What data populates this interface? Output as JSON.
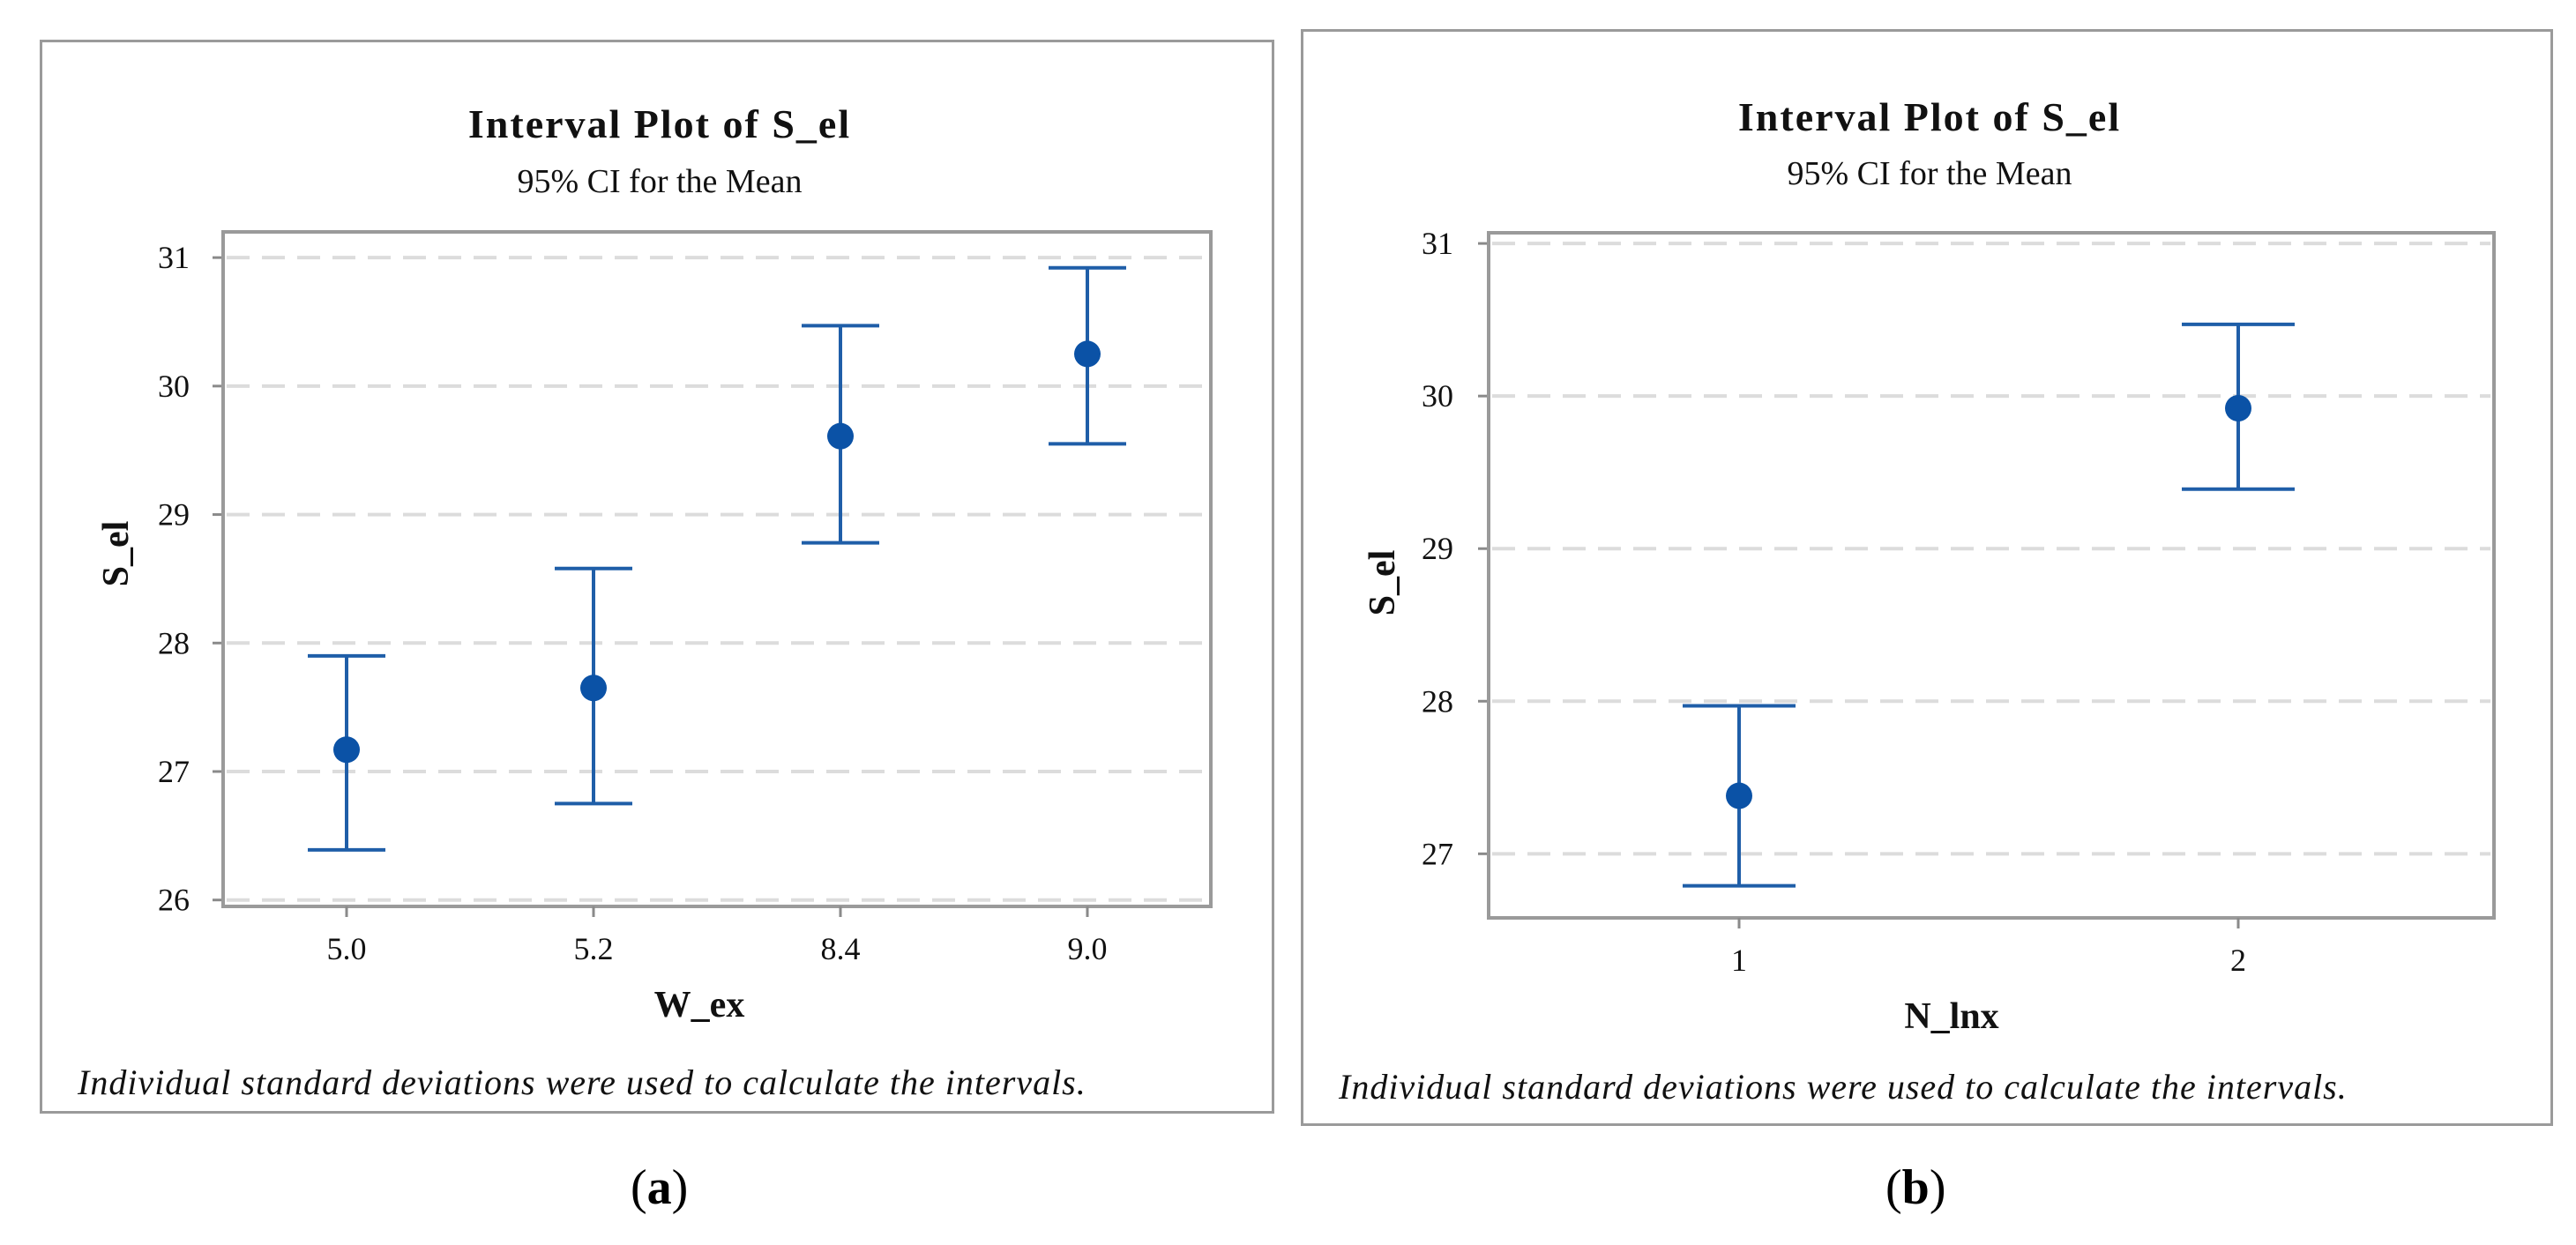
{
  "colors": {
    "series": "#1f5ea8",
    "point": "#0b52a6",
    "grid": "#dcdcdc",
    "frame": "#9a9a9a"
  },
  "chart_data": [
    {
      "type": "scatter",
      "subtype": "interval-plot",
      "panel_label": "a",
      "title": "Interval Plot of S_el",
      "subtitle": "95% CI for the Mean",
      "xlabel": "W_ex",
      "ylabel": "S_el",
      "categories": [
        "5.0",
        "5.2",
        "8.4",
        "9.0"
      ],
      "means": [
        27.17,
        27.65,
        29.61,
        30.25
      ],
      "lower": [
        26.39,
        26.75,
        28.78,
        29.55
      ],
      "upper": [
        27.9,
        28.58,
        30.47,
        30.92
      ],
      "ylim": [
        25.95,
        31.2
      ],
      "yticks": [
        26,
        27,
        28,
        29,
        30,
        31
      ],
      "grid": true,
      "footnote": "Individual standard deviations were used to calculate the intervals."
    },
    {
      "type": "scatter",
      "subtype": "interval-plot",
      "panel_label": "b",
      "title": "Interval Plot of S_el",
      "subtitle": "95% CI for the Mean",
      "xlabel": "N_lnx",
      "ylabel": "S_el",
      "categories": [
        "1",
        "2"
      ],
      "means": [
        27.38,
        29.92
      ],
      "lower": [
        26.79,
        29.39
      ],
      "upper": [
        27.97,
        30.47
      ],
      "ylim": [
        26.58,
        31.07
      ],
      "yticks": [
        27,
        28,
        29,
        30,
        31
      ],
      "grid": true,
      "footnote": "Individual standard deviations were used to calculate the intervals."
    }
  ]
}
